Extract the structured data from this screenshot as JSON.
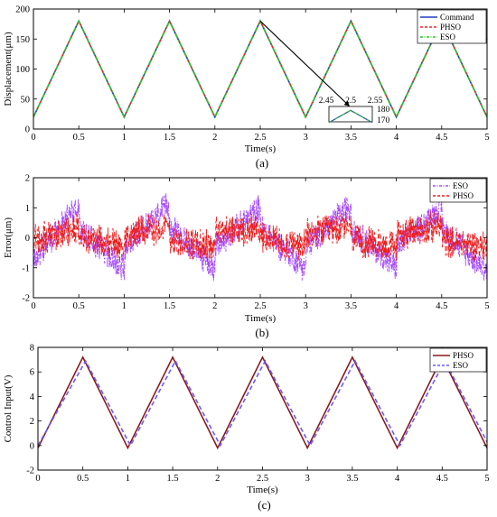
{
  "colors": {
    "command": "#1f3fbf",
    "phso_a": "#e8282c",
    "eso_a": "#2fbf2f",
    "eso_b": "#a64dff",
    "phso_b": "#ee1c1c",
    "phso_c": "#8b1a1a",
    "eso_c": "#6a5cff",
    "axis": "#000000",
    "arrow": "#000000"
  },
  "chart_data": [
    {
      "id": "a",
      "type": "line",
      "caption": "(a)",
      "xlabel": "Time(s)",
      "ylabel": "Displacement(μm)",
      "xlim": [
        0,
        5
      ],
      "ylim": [
        0,
        200
      ],
      "xticks": [
        "0",
        "0.5",
        "1",
        "1.5",
        "2",
        "2.5",
        "3",
        "3.5",
        "4",
        "4.5",
        "5"
      ],
      "yticks": [
        "0",
        "50",
        "100",
        "150",
        "200"
      ],
      "legend_position": "top-right",
      "series": [
        {
          "name": "Command",
          "style": "solid",
          "color_key": "command",
          "x": [
            0,
            0.5,
            1,
            1.5,
            2,
            2.5,
            3,
            3.5,
            4,
            4.5,
            5
          ],
          "y": [
            20,
            180,
            20,
            180,
            20,
            180,
            20,
            180,
            20,
            180,
            20
          ]
        },
        {
          "name": "PHSO",
          "style": "dashed",
          "color_key": "phso_a",
          "x": [
            0,
            0.5,
            1,
            1.5,
            2,
            2.5,
            3,
            3.5,
            4,
            4.5,
            5
          ],
          "y": [
            20,
            180,
            20,
            180,
            20,
            180,
            20,
            180,
            20,
            180,
            20
          ]
        },
        {
          "name": "ESO",
          "style": "dashdot",
          "color_key": "eso_a",
          "x": [
            0,
            0.5,
            1,
            1.5,
            2,
            2.5,
            3,
            3.5,
            4,
            4.5,
            5
          ],
          "y": [
            20,
            180,
            20,
            180,
            20,
            180,
            20,
            180,
            20,
            180,
            20
          ]
        }
      ],
      "inset": {
        "xticks": [
          "2.45",
          "2.5",
          "2.55"
        ],
        "yticks": [
          "180",
          "170"
        ],
        "xlim": [
          2.45,
          2.55
        ],
        "ylim": [
          165,
          185
        ],
        "zoom_point": [
          2.5,
          180
        ]
      }
    },
    {
      "id": "b",
      "type": "line",
      "caption": "(b)",
      "xlabel": "Time(s)",
      "ylabel": "Error(μm)",
      "xlim": [
        0,
        5
      ],
      "ylim": [
        -2,
        2
      ],
      "xticks": [
        "0",
        "0.5",
        "1",
        "1.5",
        "2",
        "2.5",
        "3",
        "3.5",
        "4",
        "4.5",
        "5"
      ],
      "yticks": [
        "-2",
        "-1",
        "0",
        "1",
        "2"
      ],
      "legend_position": "top-right",
      "series": [
        {
          "name": "ESO",
          "style": "dashdot",
          "color_key": "eso_b",
          "noise": 0.55,
          "x": [
            0,
            0.5,
            0.51,
            1,
            1.01,
            1.5,
            1.51,
            2,
            2.01,
            2.5,
            2.51,
            3,
            3.01,
            3.5,
            3.51,
            4,
            4.01,
            4.5,
            4.51,
            5
          ],
          "y": [
            -0.7,
            1.1,
            0.3,
            -1.0,
            -0.3,
            1.1,
            0.3,
            -1.0,
            -0.3,
            1.0,
            0.3,
            -1.0,
            -0.3,
            1.1,
            0.3,
            -1.0,
            -0.3,
            1.0,
            0.3,
            -1.1
          ]
        },
        {
          "name": "PHSO",
          "style": "dashed",
          "color_key": "phso_b",
          "noise": 0.6,
          "x": [
            0,
            0.5,
            0.51,
            1,
            1.01,
            1.5,
            1.51,
            2,
            2.01,
            2.5,
            2.51,
            3,
            3.01,
            3.5,
            3.51,
            4,
            4.01,
            4.5,
            4.51,
            5
          ],
          "y": [
            -0.1,
            0.3,
            0.1,
            -0.3,
            0.1,
            0.4,
            -0.1,
            -0.3,
            0.2,
            0.3,
            0.0,
            -0.3,
            0.1,
            0.4,
            -0.1,
            -0.3,
            0.1,
            0.4,
            -0.1,
            -0.3
          ]
        }
      ]
    },
    {
      "id": "c",
      "type": "line",
      "caption": "(c)",
      "xlabel": "Time(s)",
      "ylabel": "Control Input(V)",
      "xlim": [
        0,
        5
      ],
      "ylim": [
        -2,
        8
      ],
      "xticks": [
        "0",
        "0.5",
        "1",
        "1.5",
        "2",
        "2.5",
        "3",
        "3.5",
        "4",
        "4.5",
        "5"
      ],
      "yticks": [
        "-2",
        "0",
        "2",
        "4",
        "6",
        "8"
      ],
      "legend_position": "top-right",
      "series": [
        {
          "name": "PHSO",
          "style": "solid",
          "color_key": "phso_c",
          "x": [
            0,
            0.5,
            1,
            1.5,
            2,
            2.5,
            3,
            3.5,
            4,
            4.5,
            5
          ],
          "y": [
            -0.2,
            7.2,
            -0.2,
            7.2,
            -0.2,
            7.2,
            -0.2,
            7.2,
            -0.2,
            7.2,
            -0.2
          ]
        },
        {
          "name": "ESO",
          "style": "dashed",
          "color_key": "eso_c",
          "x": [
            0,
            0.53,
            1.03,
            1.53,
            2.03,
            2.53,
            3.03,
            3.53,
            4.03,
            4.53,
            5
          ],
          "y": [
            0.0,
            6.9,
            0.0,
            6.9,
            0.0,
            6.9,
            0.0,
            6.9,
            0.0,
            6.9,
            0.3
          ]
        }
      ]
    }
  ]
}
